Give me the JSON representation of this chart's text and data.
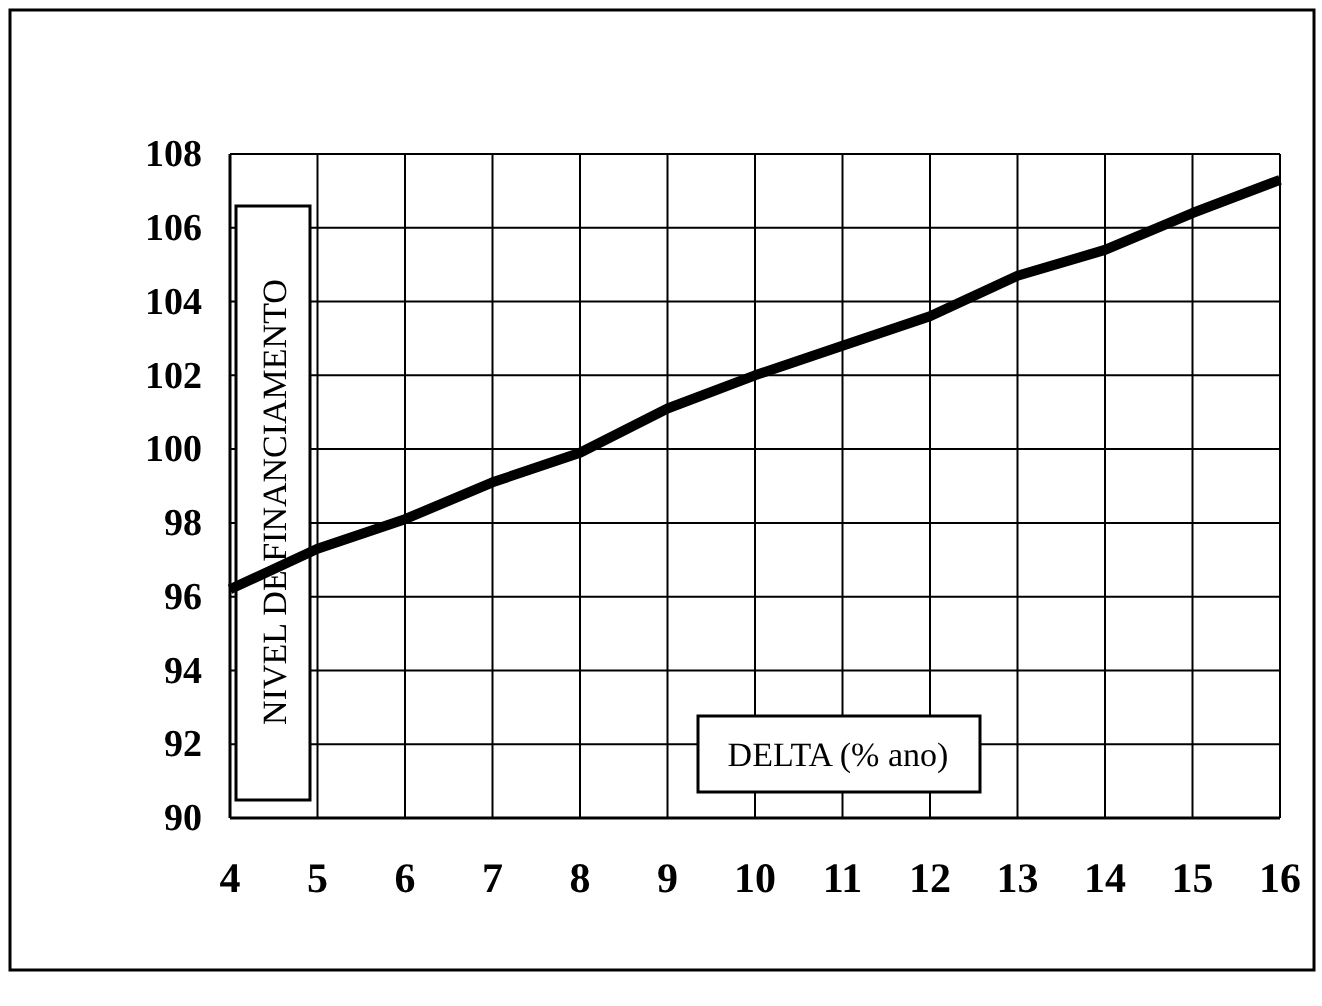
{
  "chart_data": {
    "type": "line",
    "xlabel": "DELTA (% ano)",
    "ylabel": "NIVEL DE FINANCIAMENTO",
    "x": [
      4,
      5,
      6,
      7,
      8,
      9,
      10,
      11,
      12,
      13,
      14,
      15,
      16
    ],
    "series": [
      {
        "color": "#000000",
        "values": [
          96.2,
          97.3,
          98.1,
          99.1,
          99.9,
          101.1,
          102.0,
          102.8,
          103.6,
          104.7,
          105.4,
          106.4,
          107.3
        ]
      }
    ],
    "xlim": [
      4,
      16
    ],
    "xticks": [
      4,
      5,
      6,
      7,
      8,
      9,
      10,
      11,
      12,
      13,
      14,
      15,
      16
    ],
    "ylim": [
      90,
      108
    ],
    "yticks": [
      90,
      92,
      94,
      96,
      98,
      100,
      102,
      104,
      106,
      108
    ],
    "grid": true,
    "marker": "none",
    "line_style": "solid"
  }
}
